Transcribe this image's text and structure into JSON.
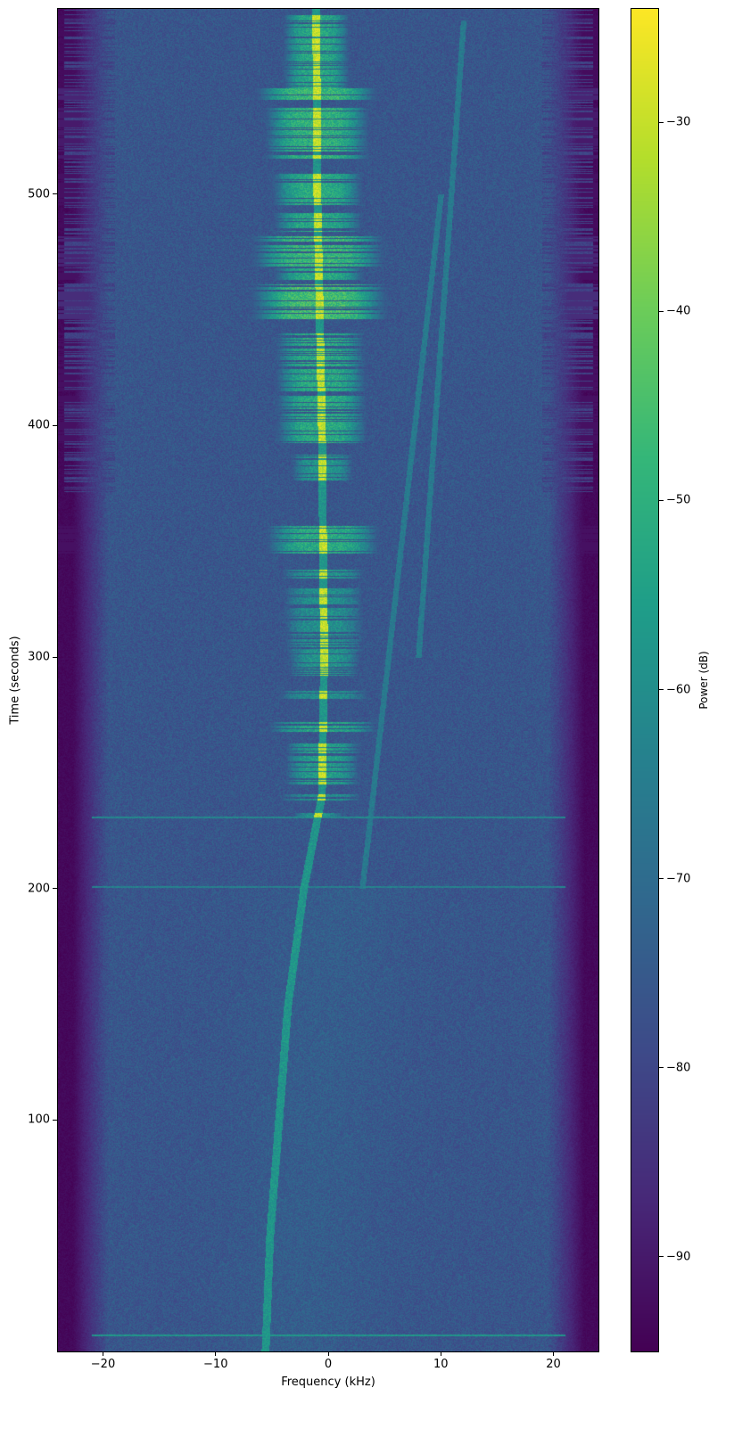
{
  "chart_data": {
    "type": "heatmap",
    "title": "",
    "xlabel": "Frequency (kHz)",
    "ylabel": "Time (seconds)",
    "xlim": [
      -24,
      24
    ],
    "ylim": [
      0,
      580
    ],
    "xticks": [
      -20,
      -10,
      0,
      10,
      20
    ],
    "xtick_labels": [
      "−20",
      "−10",
      "0",
      "10",
      "20"
    ],
    "yticks": [
      100,
      200,
      300,
      400,
      500
    ],
    "ytick_labels": [
      "100",
      "200",
      "300",
      "400",
      "500"
    ],
    "colorbar": {
      "label": "Power (dB)",
      "colormap": "viridis",
      "clim": [
        -95,
        -24
      ],
      "ticks": [
        -30,
        -40,
        -50,
        -60,
        -70,
        -80,
        -90
      ],
      "tick_labels": [
        "−30",
        "−40",
        "−50",
        "−60",
        "−70",
        "−80",
        "−90"
      ]
    },
    "background_level_db": -76,
    "band_edge_rolloff_khz": [
      -20,
      20
    ],
    "carrier_track": [
      {
        "t": 0,
        "f": -5.6
      },
      {
        "t": 50,
        "f": -5.2
      },
      {
        "t": 100,
        "f": -4.4
      },
      {
        "t": 150,
        "f": -3.6
      },
      {
        "t": 200,
        "f": -2.2
      },
      {
        "t": 240,
        "f": -0.6
      },
      {
        "t": 300,
        "f": -0.4
      },
      {
        "t": 400,
        "f": -0.6
      },
      {
        "t": 500,
        "f": -1.0
      },
      {
        "t": 580,
        "f": -1.1
      }
    ],
    "faint_tracks": [
      [
        {
          "t": 200,
          "f": 3
        },
        {
          "t": 500,
          "f": 10
        }
      ],
      [
        {
          "t": 300,
          "f": 8
        },
        {
          "t": 575,
          "f": 12
        }
      ]
    ],
    "bursts": [
      {
        "t0": 546,
        "t1": 578,
        "width_khz": 6,
        "peak_db": -45
      },
      {
        "t0": 541,
        "t1": 549,
        "width_khz": 10,
        "peak_db": -40
      },
      {
        "t0": 515,
        "t1": 538,
        "width_khz": 9,
        "peak_db": -42
      },
      {
        "t0": 495,
        "t1": 509,
        "width_khz": 8,
        "peak_db": -44
      },
      {
        "t0": 484,
        "t1": 492,
        "width_khz": 8,
        "peak_db": -45
      },
      {
        "t0": 469,
        "t1": 482,
        "width_khz": 11,
        "peak_db": -40
      },
      {
        "t0": 463,
        "t1": 468,
        "width_khz": 8,
        "peak_db": -44
      },
      {
        "t0": 446,
        "t1": 461,
        "width_khz": 11,
        "peak_db": -38
      },
      {
        "t0": 415,
        "t1": 440,
        "width_khz": 8,
        "peak_db": -44
      },
      {
        "t0": 392,
        "t1": 413,
        "width_khz": 8,
        "peak_db": -44
      },
      {
        "t0": 376,
        "t1": 388,
        "width_khz": 6,
        "peak_db": -50
      },
      {
        "t0": 345,
        "t1": 357,
        "width_khz": 10,
        "peak_db": -44
      },
      {
        "t0": 334,
        "t1": 338,
        "width_khz": 8,
        "peak_db": -50
      },
      {
        "t0": 303,
        "t1": 330,
        "width_khz": 8,
        "peak_db": -52
      },
      {
        "t0": 292,
        "t1": 303,
        "width_khz": 7,
        "peak_db": -50
      },
      {
        "t0": 282,
        "t1": 286,
        "width_khz": 9,
        "peak_db": -52
      },
      {
        "t0": 268,
        "t1": 272,
        "width_khz": 10,
        "peak_db": -46
      },
      {
        "t0": 245,
        "t1": 263,
        "width_khz": 7,
        "peak_db": -48
      },
      {
        "t0": 238,
        "t1": 241,
        "width_khz": 8,
        "peak_db": -52
      },
      {
        "t0": 231,
        "t1": 233,
        "width_khz": 5,
        "peak_db": -52
      }
    ],
    "horizontal_lines": [
      {
        "t": 7,
        "db": -58
      },
      {
        "t": 201,
        "db": -64
      },
      {
        "t": 231,
        "db": -62
      }
    ]
  }
}
